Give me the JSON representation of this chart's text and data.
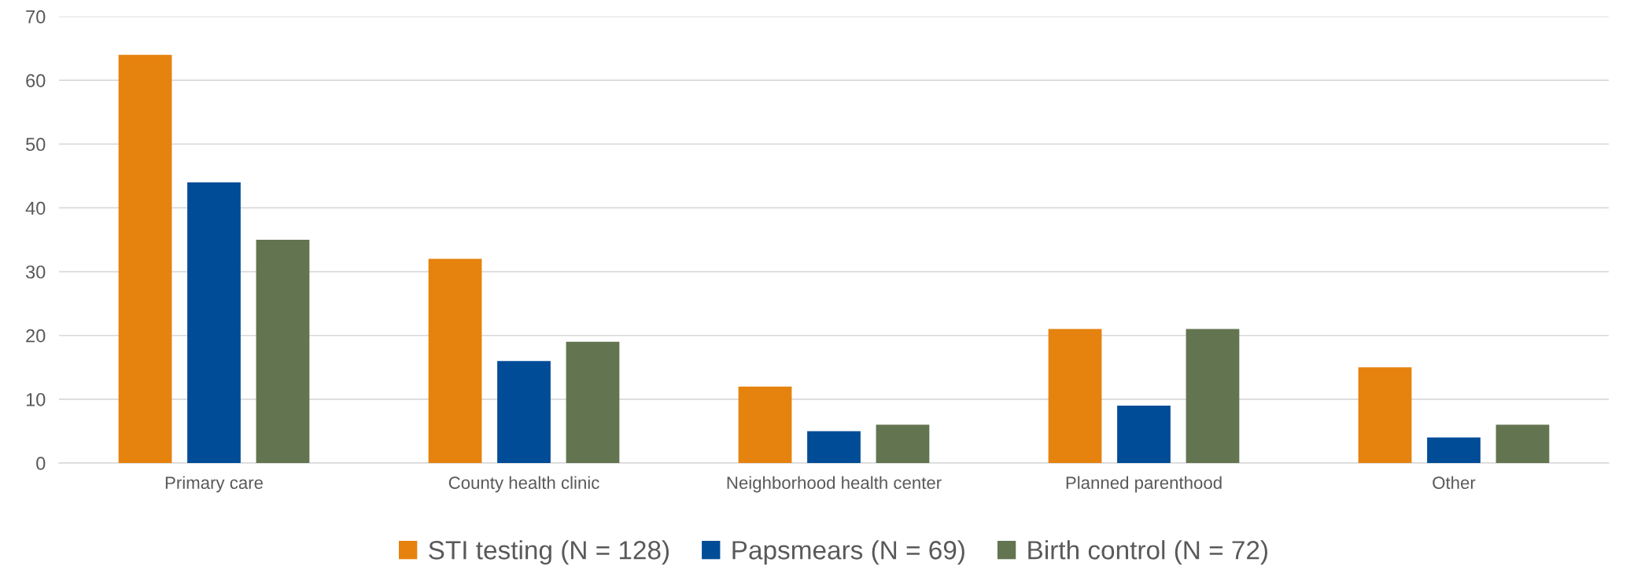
{
  "chart_data": {
    "type": "bar",
    "categories": [
      "Primary care",
      "County health clinic",
      "Neighborhood health center",
      "Planned parenthood",
      "Other"
    ],
    "series": [
      {
        "name": "STI testing (N = 128)",
        "color": "#e6820e",
        "values": [
          64,
          32,
          12,
          21,
          15
        ]
      },
      {
        "name": "Papsmears (N = 69)",
        "color": "#004c97",
        "values": [
          44,
          16,
          5,
          9,
          4
        ]
      },
      {
        "name": "Birth control (N = 72)",
        "color": "#637451",
        "values": [
          35,
          19,
          6,
          21,
          6
        ]
      }
    ],
    "ylim": [
      0,
      70
    ],
    "yticks": [
      0,
      10,
      20,
      30,
      40,
      50,
      60,
      70
    ],
    "grid": "y",
    "legend": "bottom"
  }
}
